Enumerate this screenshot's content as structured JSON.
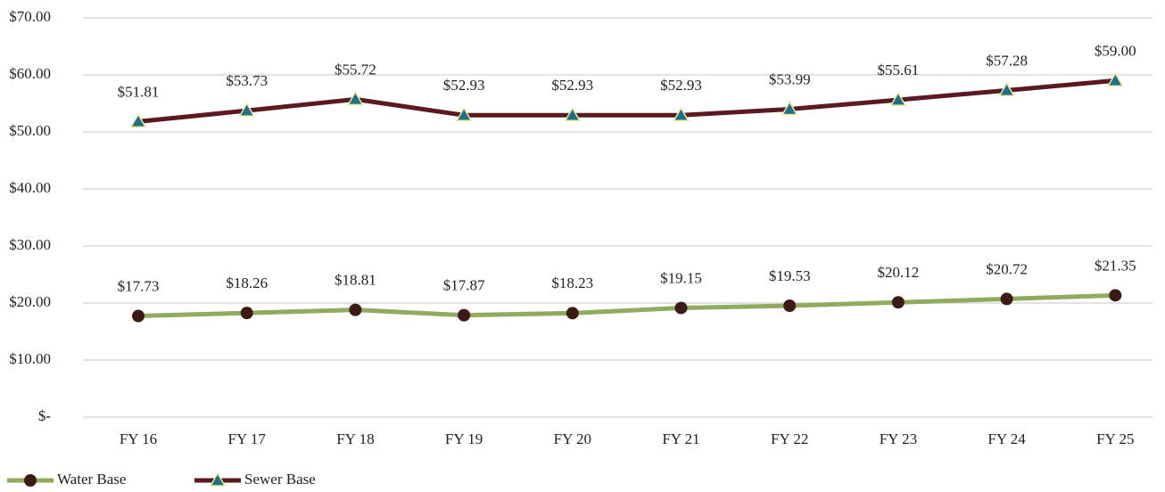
{
  "chart_data": {
    "type": "line",
    "categories": [
      "FY 16",
      "FY 17",
      "FY 18",
      "FY 19",
      "FY 20",
      "FY 21",
      "FY 22",
      "FY 23",
      "FY 24",
      "FY 25"
    ],
    "series": [
      {
        "name": "Water Base",
        "color": "#8fab5e",
        "marker": "circle",
        "marker_color": "#3d1a14",
        "values": [
          17.73,
          18.26,
          18.81,
          17.87,
          18.23,
          19.15,
          19.53,
          20.12,
          20.72,
          21.35
        ],
        "value_labels": [
          "$17.73",
          "$18.26",
          "$18.81",
          "$17.87",
          "$18.23",
          "$19.15",
          "$19.53",
          "$20.12",
          "$20.72",
          "$21.35"
        ]
      },
      {
        "name": "Sewer Base",
        "color": "#5a1a20",
        "marker": "triangle",
        "marker_color": "#1f6e8c",
        "values": [
          51.81,
          53.73,
          55.72,
          52.93,
          52.93,
          52.93,
          53.99,
          55.61,
          57.28,
          59.0
        ],
        "value_labels": [
          "$51.81",
          "$53.73",
          "$55.72",
          "$52.93",
          "$52.93",
          "$52.93",
          "$53.99",
          "$55.61",
          "$57.28",
          "$59.00"
        ]
      }
    ],
    "ylim": [
      0,
      70
    ],
    "yticks": [
      {
        "value": 0,
        "label": "$-"
      },
      {
        "value": 10,
        "label": "$10.00"
      },
      {
        "value": 20,
        "label": "$20.00"
      },
      {
        "value": 30,
        "label": "$30.00"
      },
      {
        "value": 40,
        "label": "$40.00"
      },
      {
        "value": 50,
        "label": "$50.00"
      },
      {
        "value": 60,
        "label": "$60.00"
      },
      {
        "value": 70,
        "label": "$70.00"
      }
    ],
    "grid": true,
    "legend": "bottom-left"
  }
}
